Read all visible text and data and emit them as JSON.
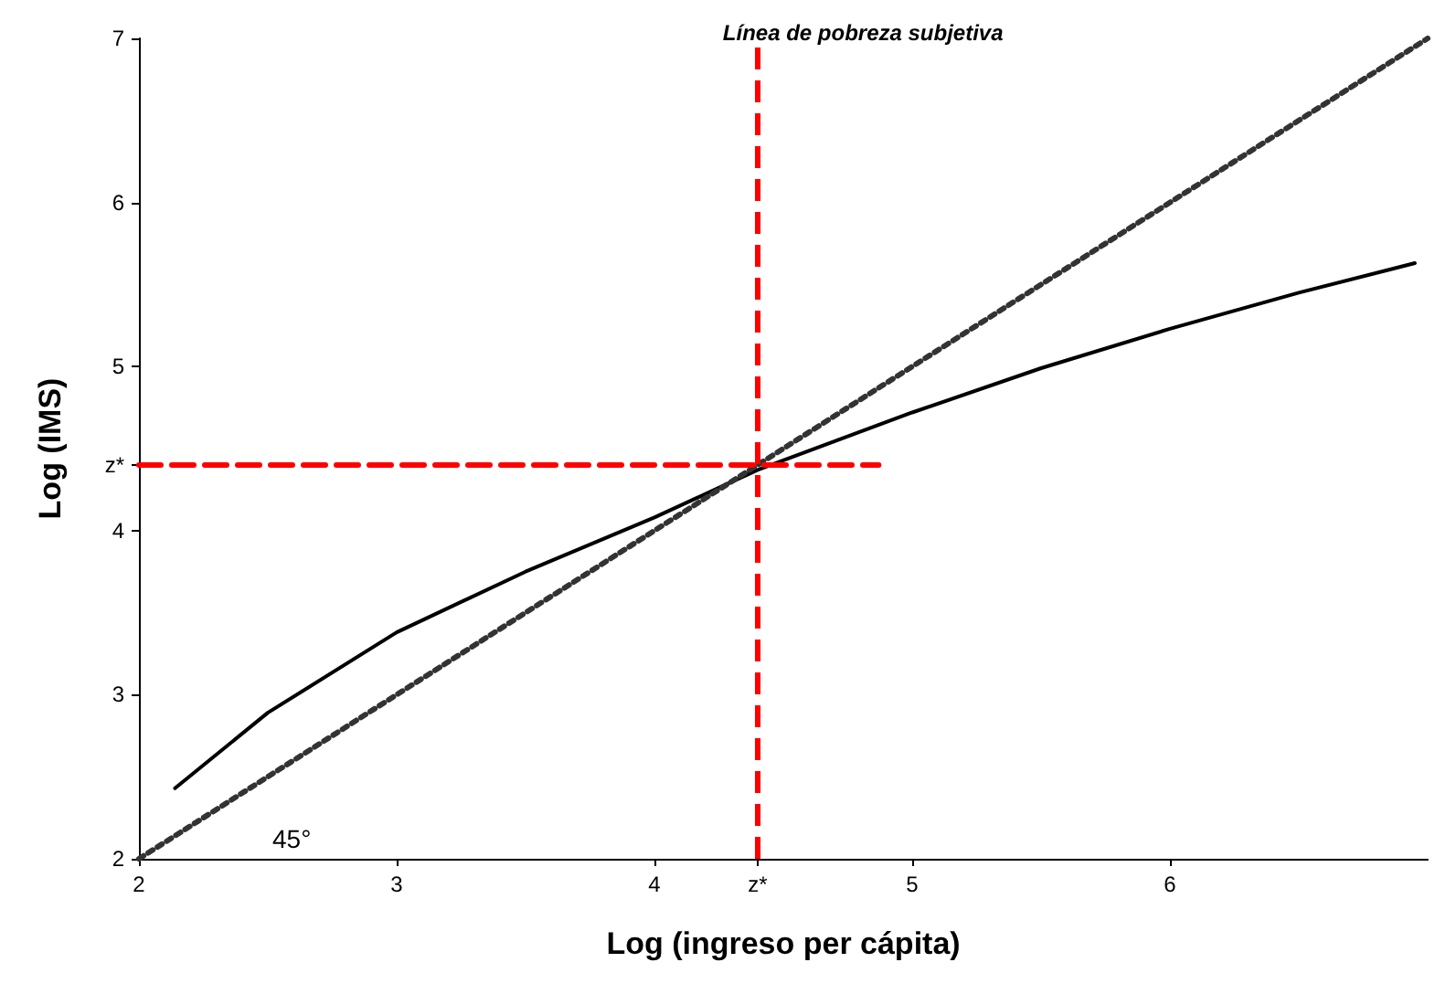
{
  "chart_data": {
    "type": "line",
    "xlabel": "Log (ingreso per cápita)",
    "ylabel": "Log (IMS)",
    "xlim": [
      2,
      7
    ],
    "ylim": [
      2,
      7
    ],
    "xticks": [
      2,
      3,
      4,
      {
        "value": 4.4,
        "label": "z*"
      },
      5,
      6
    ],
    "yticks": [
      2,
      3,
      4,
      {
        "value": 4.4,
        "label": "z*"
      },
      5,
      6,
      7
    ],
    "grid": false,
    "marker": "none",
    "series": [
      {
        "color": "#000000",
        "line_style": "solid",
        "x": [
          2.14,
          2.5,
          3,
          3.5,
          4,
          4.4,
          5,
          5.5,
          6,
          6.5,
          6.95
        ],
        "values": [
          2.43,
          2.89,
          3.38,
          3.75,
          4.08,
          4.37,
          4.72,
          4.99,
          5.23,
          5.45,
          5.63
        ]
      },
      {
        "color": "#333333",
        "line_style": "dotted",
        "x": [
          2,
          7
        ],
        "values": [
          2,
          7
        ]
      },
      {
        "color": "#ff0000",
        "line_style": "dashed",
        "x": [
          2,
          4.87
        ],
        "values": [
          4.4,
          4.4
        ]
      }
    ],
    "ref_lines": [
      {
        "axis": "x",
        "value": 4.4,
        "label": "Línea de pobreza subjetiva",
        "color": "#ff0000",
        "line_style": "dashed"
      }
    ],
    "annotations": [
      "45°"
    ]
  }
}
